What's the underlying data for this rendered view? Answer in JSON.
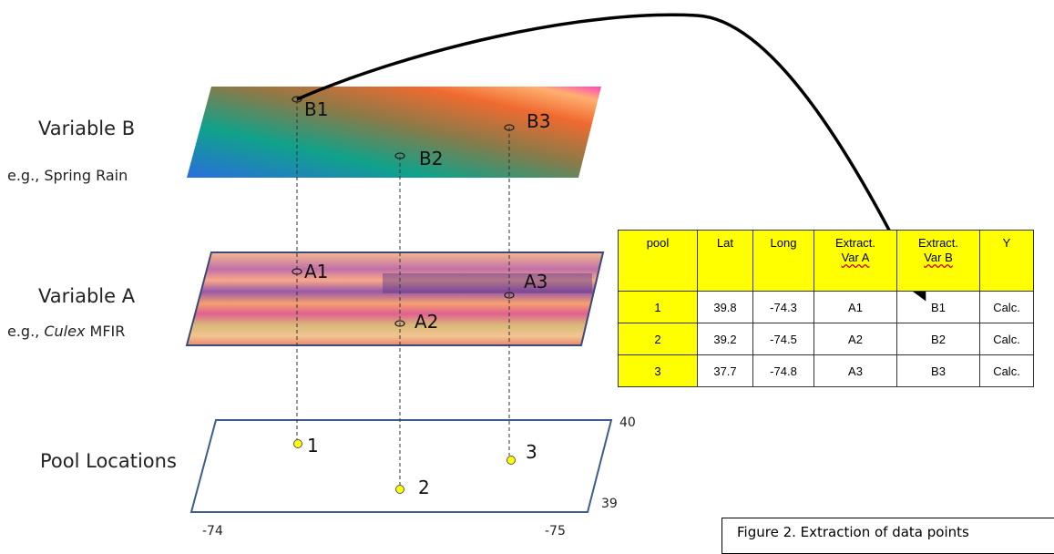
{
  "layers": {
    "b": {
      "title": "Variable B",
      "subtitle": "e.g., Spring Rain"
    },
    "a": {
      "title": "Variable A",
      "subtitle_prefix": "e.g., ",
      "subtitle_italic": "Culex",
      "subtitle_suffix": " MFIR"
    },
    "pools": {
      "title": "Pool Locations"
    }
  },
  "points": {
    "b": [
      "B1",
      "B2",
      "B3"
    ],
    "a": [
      "A1",
      "A2",
      "A3"
    ],
    "pools": [
      "1",
      "2",
      "3"
    ]
  },
  "axis": {
    "lon_left": "-74",
    "lon_right": "-75",
    "lat_top": "40",
    "lat_bottom": "39"
  },
  "table": {
    "headers": [
      "pool",
      "Lat",
      "Long",
      "Extract. Var A",
      "Extract. Var B",
      "Y"
    ],
    "header_lines": {
      "extract_a": [
        "Extract.",
        "Var A"
      ],
      "extract_b": [
        "Extract.",
        "Var B"
      ]
    },
    "rows": [
      [
        "1",
        "39.8",
        "-74.3",
        "A1",
        "B1",
        "Calc."
      ],
      [
        "2",
        "39.2",
        "-74.5",
        "A2",
        "B2",
        "Calc."
      ],
      [
        "3",
        "37.7",
        "-74.8",
        "A3",
        "B3",
        "Calc."
      ]
    ]
  },
  "caption": "Figure 2. Extraction of data points",
  "colors": {
    "highlight": "#ffff00",
    "pool_marker": "#ffff00",
    "arrow": "#000000"
  }
}
